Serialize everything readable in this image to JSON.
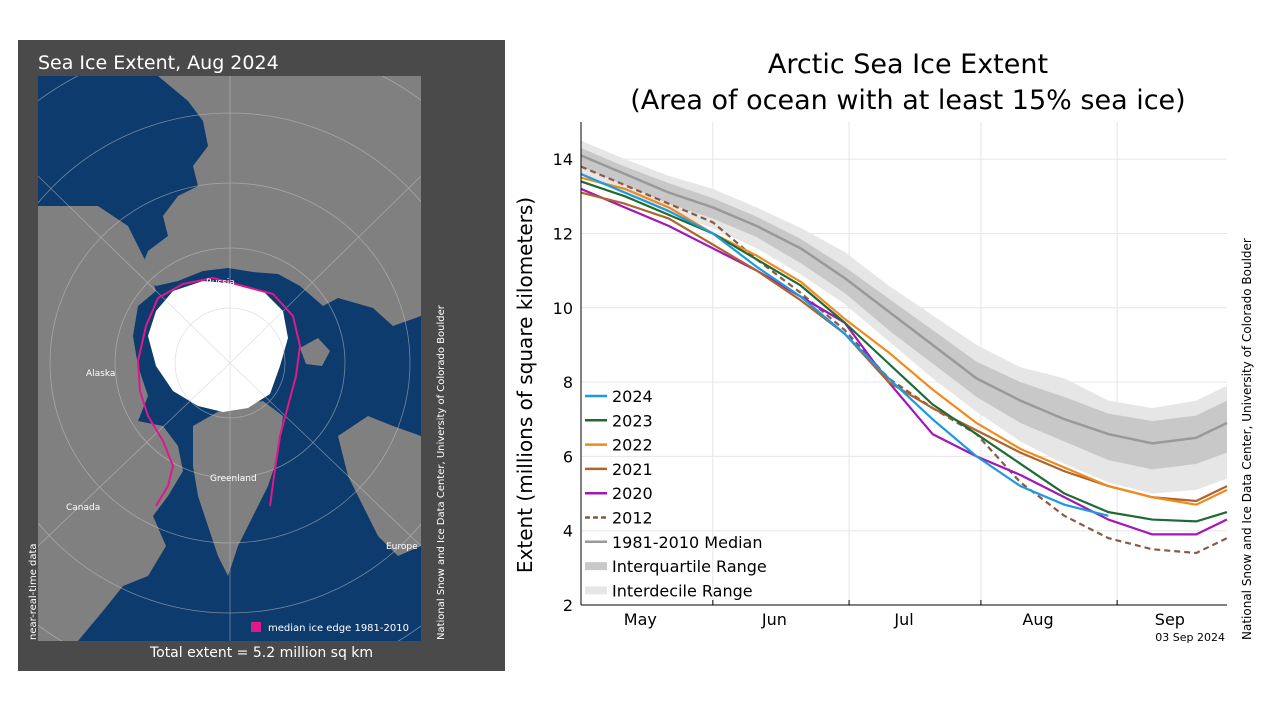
{
  "map": {
    "title": "Sea Ice Extent, Aug 2024",
    "total_extent": "Total extent = 5.2 million sq km",
    "legend_label": "median ice edge 1981-2010",
    "credit": "National Snow and Ice Data Center, University of Colorado Boulder",
    "data_note": "near-real-time data",
    "regions": {
      "russia": "Russia",
      "alaska": "Alaska",
      "canada": "Canada",
      "greenland": "Greenland",
      "europe": "Europe"
    },
    "colors": {
      "ocean": "#0d3b6e",
      "land": "#808080",
      "ice": "#ffffff",
      "median_edge": "#e0188c",
      "panel": "#4a4a4a"
    }
  },
  "chart_data": {
    "type": "line",
    "title": "Arctic Sea Ice Extent",
    "subtitle": "(Area of ocean with at least 15% sea ice)",
    "ylabel": "Extent (millions of square kilometers)",
    "xlabel": "",
    "ylim": [
      2,
      15
    ],
    "yticks": [
      2,
      4,
      6,
      8,
      10,
      12,
      14
    ],
    "xlim": [
      0,
      147
    ],
    "x_ticks": [
      {
        "pos": 0,
        "label": ""
      },
      {
        "pos": 30,
        "label": "May"
      },
      {
        "pos": 61,
        "label": "Jun"
      },
      {
        "pos": 91,
        "label": "Jul"
      },
      {
        "pos": 122,
        "label": "Aug"
      },
      {
        "pos": 153,
        "label": "Sep"
      }
    ],
    "month_labels": [
      {
        "pos": 13.5,
        "label": "May"
      },
      {
        "pos": 44,
        "label": "Jun"
      },
      {
        "pos": 73.5,
        "label": "Jul"
      },
      {
        "pos": 104,
        "label": "Aug"
      },
      {
        "pos": 134,
        "label": "Sep"
      }
    ],
    "date_stamp": "03 Sep 2024",
    "credit": "National Snow and Ice Data Center, University of Colorado Boulder",
    "x": [
      0,
      10,
      20,
      30,
      40,
      50,
      60,
      70,
      80,
      90,
      100,
      110,
      120,
      130,
      140,
      147
    ],
    "median": {
      "name": "1981-2010 Median",
      "color": "#999999",
      "values": [
        14.1,
        13.6,
        13.1,
        12.7,
        12.2,
        11.6,
        10.8,
        9.9,
        9.0,
        8.1,
        7.5,
        7.0,
        6.6,
        6.35,
        6.5,
        6.9
      ]
    },
    "interquartile": {
      "name": "Interquartile Range",
      "color": "#c8c8c8",
      "lower": [
        13.8,
        13.3,
        12.8,
        12.4,
        11.9,
        11.2,
        10.4,
        9.4,
        8.5,
        7.6,
        6.9,
        6.4,
        5.9,
        5.65,
        5.8,
        6.1
      ],
      "upper": [
        14.3,
        13.8,
        13.35,
        12.95,
        12.45,
        11.85,
        11.1,
        10.25,
        9.4,
        8.55,
        8.0,
        7.6,
        7.15,
        6.95,
        7.1,
        7.5
      ]
    },
    "interdecile": {
      "name": "Interdecile Range",
      "color": "#e6e6e6",
      "lower": [
        13.55,
        13.05,
        12.55,
        12.15,
        11.6,
        10.9,
        10.1,
        9.1,
        8.1,
        7.2,
        6.4,
        5.8,
        5.3,
        5.0,
        5.1,
        5.4
      ],
      "upper": [
        14.5,
        14.0,
        13.55,
        13.2,
        12.7,
        12.15,
        11.5,
        10.6,
        9.8,
        9.0,
        8.4,
        8.1,
        7.5,
        7.3,
        7.5,
        7.9
      ]
    },
    "series": [
      {
        "name": "2024",
        "color": "#1a9be0",
        "dash": false,
        "x": [
          0,
          10,
          20,
          30,
          40,
          50,
          60,
          70,
          80,
          90,
          100,
          110,
          120
        ],
        "values": [
          13.6,
          13.1,
          12.6,
          12.0,
          11.1,
          10.3,
          9.3,
          8.1,
          7.0,
          6.0,
          5.2,
          4.7,
          4.4
        ]
      },
      {
        "name": "2023",
        "color": "#1e6b35",
        "dash": false,
        "x": [
          0,
          10,
          20,
          30,
          40,
          50,
          60,
          70,
          80,
          90,
          100,
          110,
          120,
          130,
          140,
          147
        ],
        "values": [
          13.4,
          13.0,
          12.5,
          12.0,
          11.3,
          10.6,
          9.6,
          8.5,
          7.4,
          6.6,
          5.8,
          5.0,
          4.5,
          4.3,
          4.25,
          4.5
        ]
      },
      {
        "name": "2022",
        "color": "#f08a1c",
        "dash": false,
        "x": [
          0,
          10,
          20,
          30,
          40,
          50,
          60,
          70,
          80,
          90,
          100,
          110,
          120,
          130,
          140,
          147
        ],
        "values": [
          13.5,
          13.2,
          12.7,
          12.0,
          11.4,
          10.7,
          9.7,
          8.8,
          7.8,
          6.9,
          6.2,
          5.7,
          5.2,
          4.9,
          4.7,
          5.1
        ]
      },
      {
        "name": "2021",
        "color": "#b0632d",
        "dash": false,
        "x": [
          0,
          10,
          20,
          30,
          40,
          50,
          60,
          70,
          80,
          90,
          100,
          110,
          120,
          130,
          140,
          147
        ],
        "values": [
          13.1,
          12.8,
          12.4,
          11.7,
          11.0,
          10.2,
          9.3,
          8.0,
          7.3,
          6.7,
          6.1,
          5.6,
          5.2,
          4.9,
          4.8,
          5.2
        ]
      },
      {
        "name": "2020",
        "color": "#a316b8",
        "dash": false,
        "x": [
          0,
          10,
          20,
          30,
          40,
          50,
          60,
          70,
          80,
          90,
          100,
          110,
          120,
          130,
          140,
          147
        ],
        "values": [
          13.2,
          12.7,
          12.2,
          11.6,
          11.0,
          10.3,
          9.6,
          8.0,
          6.6,
          6.0,
          5.5,
          4.9,
          4.3,
          3.9,
          3.9,
          4.3
        ]
      },
      {
        "name": "2012",
        "color": "#8a5a44",
        "dash": true,
        "x": [
          0,
          10,
          20,
          30,
          40,
          50,
          60,
          70,
          80,
          90,
          100,
          110,
          120,
          130,
          140,
          147
        ],
        "values": [
          13.8,
          13.3,
          12.8,
          12.3,
          11.3,
          10.4,
          9.4,
          8.1,
          7.3,
          6.6,
          5.3,
          4.4,
          3.8,
          3.5,
          3.4,
          3.8
        ]
      }
    ],
    "legend": {
      "placement": "bottom-left",
      "entries": [
        "2024",
        "2023",
        "2022",
        "2021",
        "2020",
        "2012",
        "1981-2010 Median",
        "Interquartile Range",
        "Interdecile Range"
      ]
    }
  }
}
